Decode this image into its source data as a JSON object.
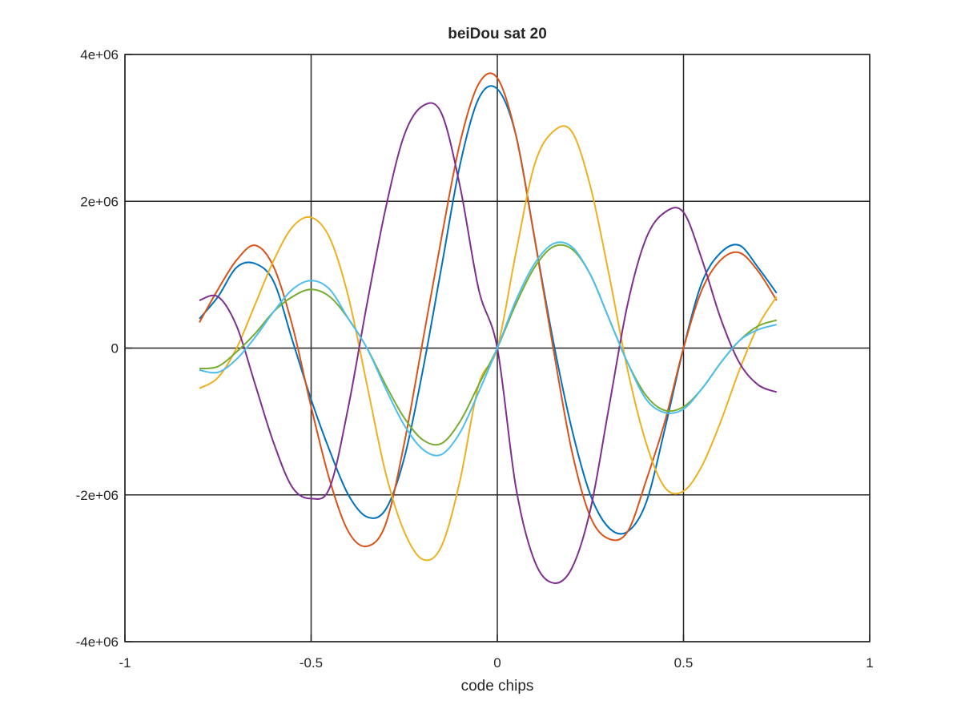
{
  "chart_data": {
    "type": "line",
    "title": "beiDou sat 20",
    "xlabel": "code chips",
    "ylabel": "",
    "xlim": [
      -1,
      1
    ],
    "ylim": [
      -4000000,
      4000000
    ],
    "xticks": [
      -1,
      -0.5,
      0,
      0.5,
      1
    ],
    "xtick_labels": [
      "-1",
      "-0.5",
      "0",
      "0.5",
      "1"
    ],
    "yticks": [
      -4000000,
      -2000000,
      0,
      2000000,
      4000000
    ],
    "ytick_labels": [
      "-4e+06",
      "-2e+06",
      "0",
      "2e+06",
      "4e+06"
    ],
    "grid": true,
    "legend": "none",
    "series": [
      {
        "color": "#0072bd",
        "x": [
          -0.8,
          -0.75,
          -0.7,
          -0.65,
          -0.6,
          -0.55,
          -0.5,
          -0.45,
          -0.4,
          -0.35,
          -0.3,
          -0.25,
          -0.2,
          -0.15,
          -0.1,
          -0.05,
          0,
          0.05,
          0.1,
          0.15,
          0.2,
          0.25,
          0.3,
          0.35,
          0.4,
          0.45,
          0.5,
          0.55,
          0.6,
          0.65,
          0.7,
          0.75
        ],
        "y": [
          400000,
          700000,
          1100000,
          1150000,
          900000,
          100000,
          -700000,
          -1400000,
          -2000000,
          -2300000,
          -2200000,
          -1500000,
          -300000,
          1100000,
          2500000,
          3400000,
          3530000,
          2900000,
          1500000,
          100000,
          -1100000,
          -2000000,
          -2450000,
          -2500000,
          -2100000,
          -1100000,
          0,
          900000,
          1300000,
          1400000,
          1100000,
          750000
        ]
      },
      {
        "color": "#d95319",
        "x": [
          -0.8,
          -0.75,
          -0.7,
          -0.65,
          -0.6,
          -0.55,
          -0.5,
          -0.45,
          -0.4,
          -0.35,
          -0.3,
          -0.25,
          -0.2,
          -0.15,
          -0.1,
          -0.05,
          0,
          0.05,
          0.1,
          0.15,
          0.2,
          0.25,
          0.3,
          0.35,
          0.4,
          0.45,
          0.5,
          0.55,
          0.6,
          0.65,
          0.7,
          0.75
        ],
        "y": [
          350000,
          800000,
          1200000,
          1400000,
          1100000,
          300000,
          -800000,
          -1800000,
          -2500000,
          -2700000,
          -2400000,
          -1300000,
          100000,
          1500000,
          2800000,
          3600000,
          3680000,
          2900000,
          1500000,
          0,
          -1400000,
          -2300000,
          -2600000,
          -2500000,
          -1800000,
          -1000000,
          0,
          800000,
          1200000,
          1300000,
          1050000,
          650000
        ]
      },
      {
        "color": "#edb120",
        "x": [
          -0.8,
          -0.75,
          -0.7,
          -0.65,
          -0.6,
          -0.55,
          -0.5,
          -0.45,
          -0.4,
          -0.35,
          -0.3,
          -0.25,
          -0.2,
          -0.15,
          -0.1,
          -0.05,
          0,
          0.05,
          0.1,
          0.15,
          0.2,
          0.25,
          0.3,
          0.35,
          0.4,
          0.45,
          0.5,
          0.55,
          0.6,
          0.65,
          0.7,
          0.75
        ],
        "y": [
          -550000,
          -400000,
          0,
          600000,
          1200000,
          1650000,
          1780000,
          1500000,
          700000,
          -500000,
          -1700000,
          -2500000,
          -2880000,
          -2700000,
          -1800000,
          -500000,
          0,
          1300000,
          2500000,
          2950000,
          2950000,
          2200000,
          1000000,
          -300000,
          -1300000,
          -1900000,
          -1950000,
          -1600000,
          -1000000,
          -300000,
          300000,
          700000
        ]
      },
      {
        "color": "#7e2f8e",
        "x": [
          -0.8,
          -0.75,
          -0.7,
          -0.65,
          -0.6,
          -0.55,
          -0.5,
          -0.45,
          -0.4,
          -0.35,
          -0.3,
          -0.25,
          -0.2,
          -0.15,
          -0.1,
          -0.05,
          0,
          0.05,
          0.1,
          0.15,
          0.2,
          0.25,
          0.3,
          0.35,
          0.4,
          0.45,
          0.5,
          0.55,
          0.6,
          0.65,
          0.7,
          0.75
        ],
        "y": [
          650000,
          700000,
          300000,
          -500000,
          -1300000,
          -1900000,
          -2050000,
          -1900000,
          -800000,
          600000,
          1900000,
          2900000,
          3300000,
          3200000,
          2200000,
          800000,
          0,
          -1900000,
          -2900000,
          -3200000,
          -3000000,
          -2200000,
          -800000,
          600000,
          1500000,
          1850000,
          1850000,
          1200000,
          400000,
          -200000,
          -500000,
          -600000
        ]
      },
      {
        "color": "#77ac30",
        "x": [
          -0.8,
          -0.75,
          -0.7,
          -0.65,
          -0.6,
          -0.55,
          -0.5,
          -0.45,
          -0.4,
          -0.35,
          -0.3,
          -0.25,
          -0.2,
          -0.15,
          -0.1,
          -0.05,
          0,
          0.05,
          0.1,
          0.15,
          0.2,
          0.25,
          0.3,
          0.35,
          0.4,
          0.45,
          0.5,
          0.55,
          0.6,
          0.65,
          0.7,
          0.75
        ],
        "y": [
          -280000,
          -250000,
          -50000,
          200000,
          500000,
          700000,
          800000,
          700000,
          400000,
          0,
          -500000,
          -950000,
          -1250000,
          -1300000,
          -1000000,
          -500000,
          0,
          600000,
          1100000,
          1380000,
          1350000,
          1000000,
          400000,
          -200000,
          -650000,
          -850000,
          -800000,
          -550000,
          -200000,
          100000,
          300000,
          380000
        ]
      },
      {
        "color": "#4dbeee",
        "x": [
          -0.8,
          -0.75,
          -0.7,
          -0.65,
          -0.6,
          -0.55,
          -0.5,
          -0.45,
          -0.4,
          -0.35,
          -0.3,
          -0.25,
          -0.2,
          -0.15,
          -0.1,
          -0.05,
          0,
          0.05,
          0.1,
          0.15,
          0.2,
          0.25,
          0.3,
          0.35,
          0.4,
          0.45,
          0.5,
          0.55,
          0.6,
          0.65,
          0.7,
          0.75
        ],
        "y": [
          -300000,
          -330000,
          -150000,
          150000,
          500000,
          800000,
          920000,
          800000,
          400000,
          0,
          -550000,
          -1050000,
          -1380000,
          -1450000,
          -1150000,
          -600000,
          0,
          650000,
          1150000,
          1420000,
          1380000,
          1000000,
          400000,
          -200000,
          -700000,
          -880000,
          -830000,
          -550000,
          -200000,
          100000,
          250000,
          320000
        ]
      }
    ]
  }
}
